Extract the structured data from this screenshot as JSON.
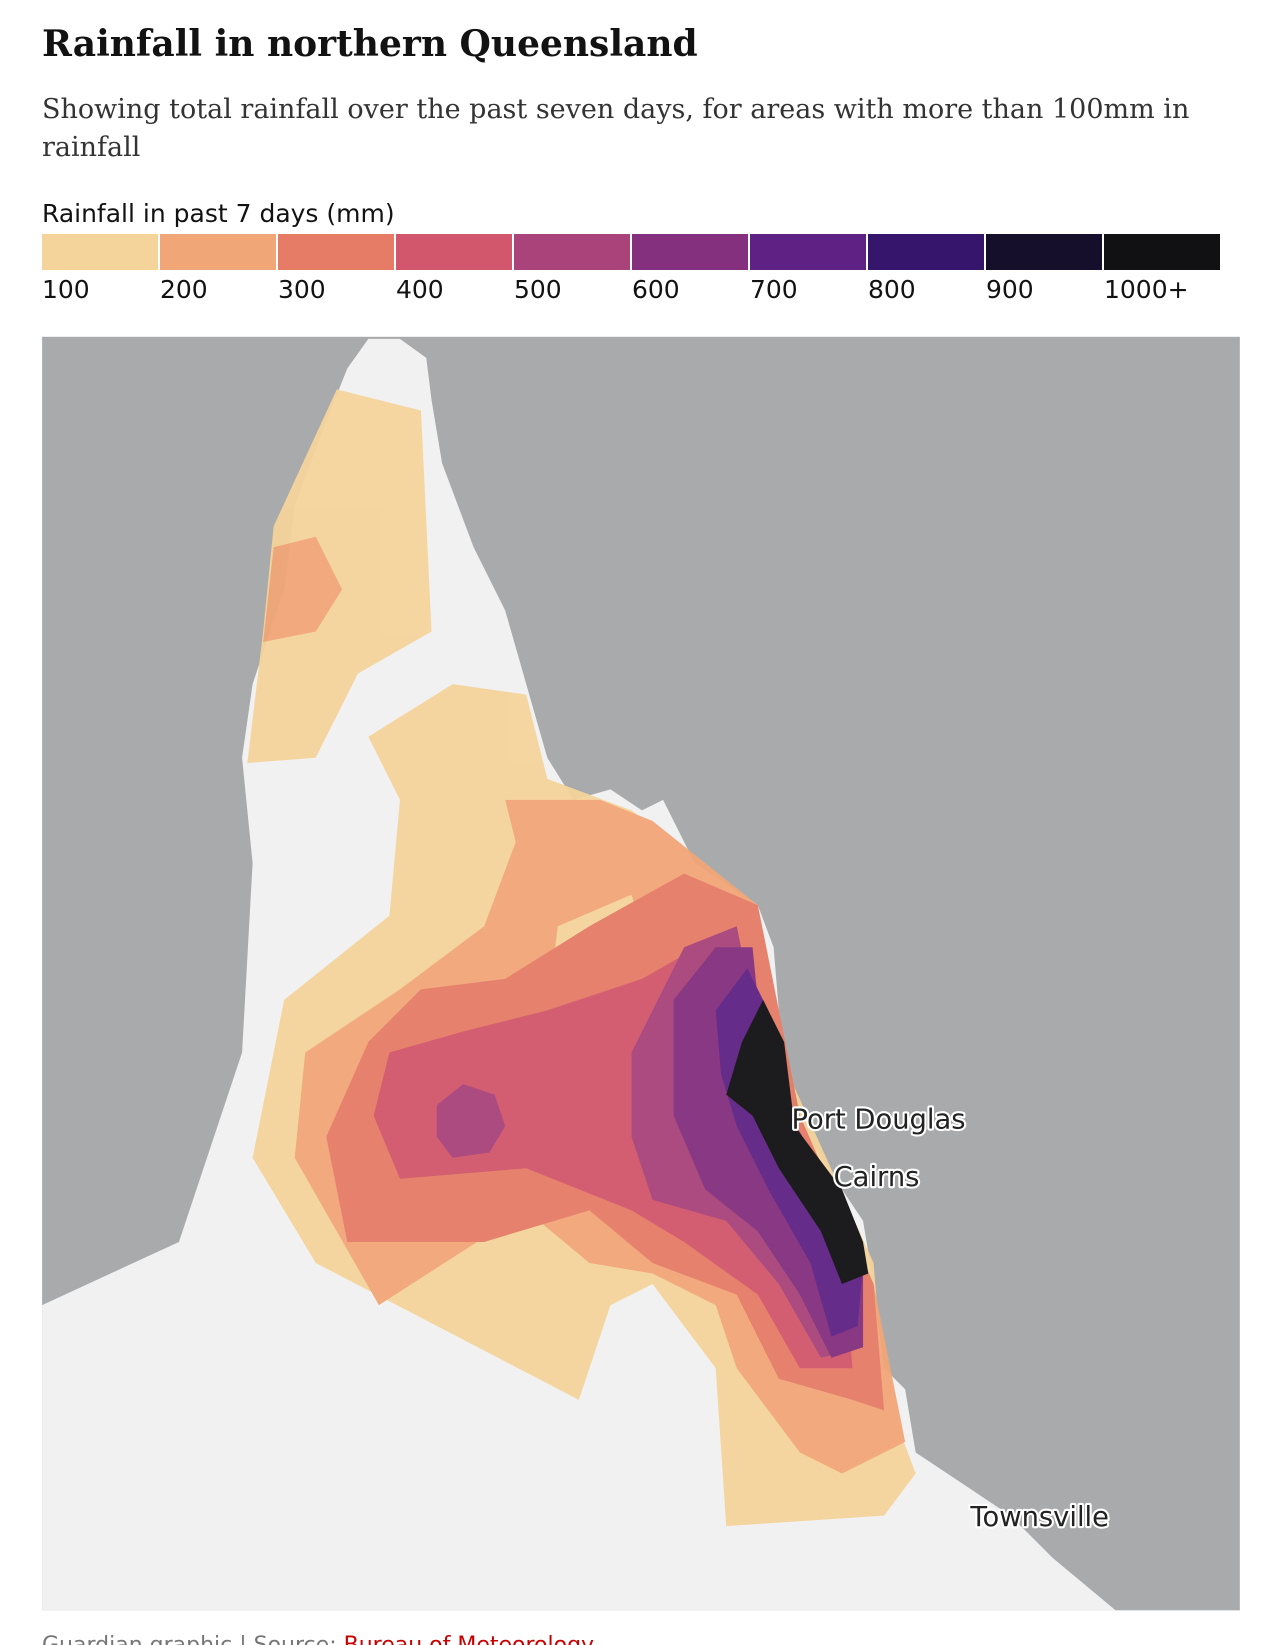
{
  "header": {
    "title": "Rainfall in northern Queensland",
    "subtitle": "Showing total rainfall over the past seven days, for areas with more than 100mm in rainfall"
  },
  "legend": {
    "title": "Rainfall in past 7 days (mm)",
    "items": [
      {
        "label": "100",
        "color": "#f5d49b"
      },
      {
        "label": "200",
        "color": "#f1a677"
      },
      {
        "label": "300",
        "color": "#e67c66"
      },
      {
        "label": "400",
        "color": "#d2576c"
      },
      {
        "label": "500",
        "color": "#a9437a"
      },
      {
        "label": "600",
        "color": "#84307f"
      },
      {
        "label": "700",
        "color": "#5f2284"
      },
      {
        "label": "800",
        "color": "#36156d"
      },
      {
        "label": "900",
        "color": "#160f2c"
      },
      {
        "label": "1000+",
        "color": "#111113"
      }
    ]
  },
  "map": {
    "places": [
      "Port Douglas",
      "Cairns",
      "Townsville"
    ]
  },
  "footer": {
    "credit": "Guardian graphic | Source: ",
    "source_link": "Bureau of Meteorology"
  }
}
